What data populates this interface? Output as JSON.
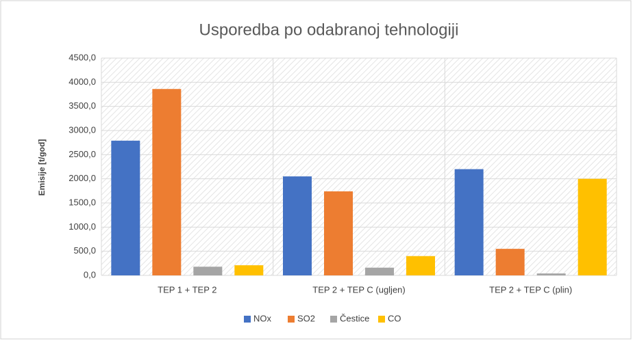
{
  "chart_data": {
    "type": "bar",
    "title": "Usporedba po odabranoj tehnologiji",
    "y_label": "Emisije [t/god]",
    "categories": [
      "TEP 1 + TEP 2",
      "TEP 2 + TEP C (ugljen)",
      "TEP 2 + TEP C (plin)"
    ],
    "series": [
      {
        "name": "NOx",
        "color": "#4472c4",
        "values": [
          2790,
          2050,
          2200
        ]
      },
      {
        "name": "SO2",
        "color": "#ed7d31",
        "values": [
          3860,
          1740,
          550
        ]
      },
      {
        "name": "Čestice",
        "color": "#a5a5a5",
        "values": [
          180,
          160,
          40
        ]
      },
      {
        "name": "CO",
        "color": "#ffc000",
        "values": [
          210,
          400,
          2000
        ]
      }
    ],
    "ylim": [
      0,
      4500
    ],
    "yticks": [
      {
        "value": 0,
        "label": "0,0"
      },
      {
        "value": 500,
        "label": "500,0"
      },
      {
        "value": 1000,
        "label": "1000,0"
      },
      {
        "value": 1500,
        "label": "1500,0"
      },
      {
        "value": 2000,
        "label": "2000,0"
      },
      {
        "value": 2500,
        "label": "2500,0"
      },
      {
        "value": 3000,
        "label": "3000,0"
      },
      {
        "value": 3500,
        "label": "3500,0"
      },
      {
        "value": 4000,
        "label": "4000,0"
      },
      {
        "value": 4500,
        "label": "4500,0"
      }
    ],
    "grid": true,
    "legend": "bottom"
  }
}
